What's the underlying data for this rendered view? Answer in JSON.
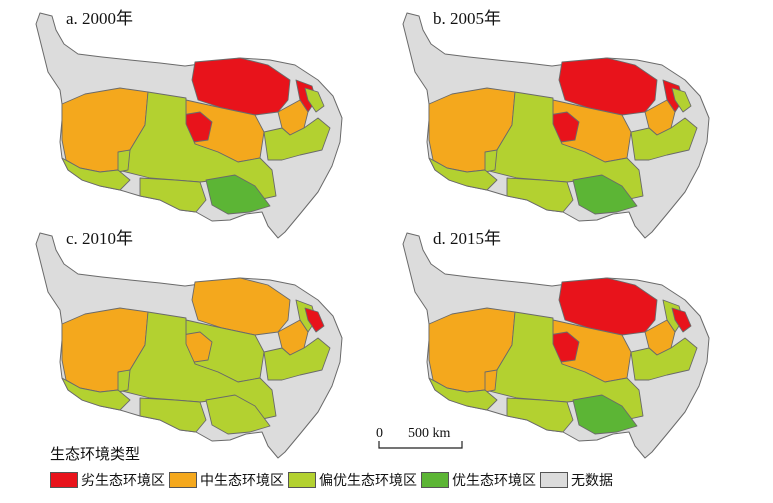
{
  "panels": [
    {
      "title": "a. 2000年",
      "colors": {
        "R1": "poor",
        "R2": "poor",
        "R3": "medium",
        "R4": "medium",
        "R5": "poor",
        "R6": "medium",
        "R7": "fair",
        "R8": "good",
        "R9": "fair",
        "R10": "fair",
        "R11": "fair",
        "R12": "fair",
        "R13": "fair"
      }
    },
    {
      "title": "b. 2005年",
      "colors": {
        "R1": "poor",
        "R2": "poor",
        "R3": "medium",
        "R4": "medium",
        "R5": "poor",
        "R6": "medium",
        "R7": "fair",
        "R8": "good",
        "R9": "fair",
        "R10": "fair",
        "R11": "fair",
        "R12": "fair",
        "R13": "fair"
      }
    },
    {
      "title": "c. 2010年",
      "colors": {
        "R1": "medium",
        "R2": "fair",
        "R3": "medium",
        "R4": "fair",
        "R5": "medium",
        "R6": "medium",
        "R7": "fair",
        "R8": "fair",
        "R9": "fair",
        "R10": "fair",
        "R11": "fair",
        "R12": "poor",
        "R13": "fair"
      }
    },
    {
      "title": "d. 2015年",
      "colors": {
        "R1": "poor",
        "R2": "fair",
        "R3": "medium",
        "R4": "medium",
        "R5": "poor",
        "R6": "medium",
        "R7": "fair",
        "R8": "good",
        "R9": "medium",
        "R10": "fair",
        "R11": "fair",
        "R12": "poor",
        "R13": "fair"
      }
    }
  ],
  "scale_bar": {
    "start": "0",
    "end": "500 km"
  },
  "legend": {
    "title": "生态环境类型",
    "items": [
      {
        "key": "poor",
        "label": "劣生态环境区",
        "color": "#e8131b"
      },
      {
        "key": "medium",
        "label": "中生态环境区",
        "color": "#f4a81d"
      },
      {
        "key": "fair",
        "label": "偏优生态环境区",
        "color": "#b3d130"
      },
      {
        "key": "good",
        "label": "优生态环境区",
        "color": "#5cb535"
      },
      {
        "key": "nodata",
        "label": "无数据",
        "color": "#dcdcdc"
      }
    ]
  }
}
